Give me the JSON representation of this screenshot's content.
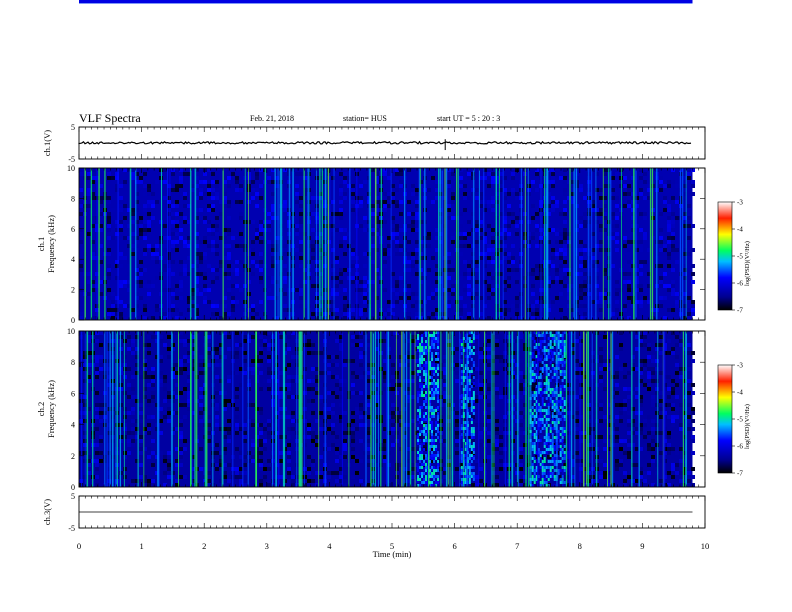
{
  "header": {
    "title": "VLF Spectra",
    "date": "Feb. 21, 2018",
    "station": "station= HUS",
    "start": "start  UT  =   5  : 20 : 3"
  },
  "chart_data": [
    {
      "type": "line",
      "panel": "ch1-waveform",
      "ylabel": "ch.1(V)",
      "ylim": [
        -5,
        5
      ],
      "y_ticks": [
        "5",
        "-5"
      ],
      "xlim": [
        0,
        10
      ],
      "series": [
        {
          "x": [
            0,
            9.8
          ],
          "values": [
            0.05,
            0.05
          ]
        }
      ],
      "spikes": [
        {
          "x": 5.85,
          "amplitude": 1.2
        }
      ]
    },
    {
      "type": "heatmap",
      "panel": "ch1-spectrogram",
      "ylabel": "ch.1\nFrequency (kHz)",
      "ylim": [
        0,
        10
      ],
      "y_ticks": [
        "0",
        "2",
        "4",
        "6",
        "8",
        "10"
      ],
      "xlim": [
        0,
        10
      ],
      "data_end_min": 9.8,
      "colorbar": {
        "label": "log(PSD)(V²/Hz)",
        "range": [
          -7,
          -3
        ],
        "ticks": [
          "-3",
          "-4",
          "-5",
          "-6",
          "-7"
        ]
      },
      "bands_khz": [
        {
          "f": 0.3,
          "v": -4.7
        },
        {
          "f": 0.7,
          "v": -4.5
        },
        {
          "f": 1.0,
          "v": -5.0
        },
        {
          "f": 1.35,
          "v": -5.0
        },
        {
          "f": 1.7,
          "v": -4.6
        },
        {
          "f": 2.5,
          "v": -5.2
        },
        {
          "f": 3.2,
          "v": -5.2
        },
        {
          "f": 3.8,
          "v": -5.4
        },
        {
          "f": 4.4,
          "v": -5.3
        },
        {
          "f": 5.0,
          "v": -5.0
        },
        {
          "f": 5.5,
          "v": -5.7
        },
        {
          "f": 7.6,
          "v": -5.7
        },
        {
          "f": 9.7,
          "v": -5.9
        }
      ],
      "background": -6.3
    },
    {
      "type": "heatmap",
      "panel": "ch2-spectrogram",
      "ylabel": "ch.2\nFrequency (kHz)",
      "ylim": [
        0,
        10
      ],
      "y_ticks": [
        "0",
        "2",
        "4",
        "6",
        "8",
        "10"
      ],
      "xlim": [
        0,
        10
      ],
      "data_end_min": 9.8,
      "colorbar": {
        "label": "log(PSD)(V²/Hz)",
        "range": [
          -7,
          -3
        ],
        "ticks": [
          "-3",
          "-4",
          "-5",
          "-6",
          "-7"
        ]
      },
      "bands_khz": [
        {
          "f": 0.5,
          "v": -5.3
        },
        {
          "f": 1.0,
          "v": -5.4
        },
        {
          "f": 1.5,
          "v": -5.3
        },
        {
          "f": 2.0,
          "v": -5.5
        },
        {
          "f": 2.9,
          "v": -5.4
        },
        {
          "f": 3.6,
          "v": -5.8
        },
        {
          "f": 5.6,
          "v": -6.0
        }
      ],
      "bursts_min": [
        [
          5.4,
          5.75
        ],
        [
          6.1,
          6.3
        ],
        [
          7.2,
          7.75
        ]
      ],
      "background": -6.4
    },
    {
      "type": "line",
      "panel": "ch3-waveform",
      "ylabel": "ch.3(V)",
      "xlabel": "Time (min)",
      "ylim": [
        -5,
        5
      ],
      "y_ticks": [
        "5",
        "-5"
      ],
      "xlim": [
        0,
        10
      ],
      "x_ticks": [
        "0",
        "1",
        "2",
        "3",
        "4",
        "5",
        "6",
        "7",
        "8",
        "9",
        "10"
      ],
      "series": [
        {
          "x": [
            0,
            9.8
          ],
          "values": [
            0,
            0
          ]
        }
      ]
    }
  ]
}
